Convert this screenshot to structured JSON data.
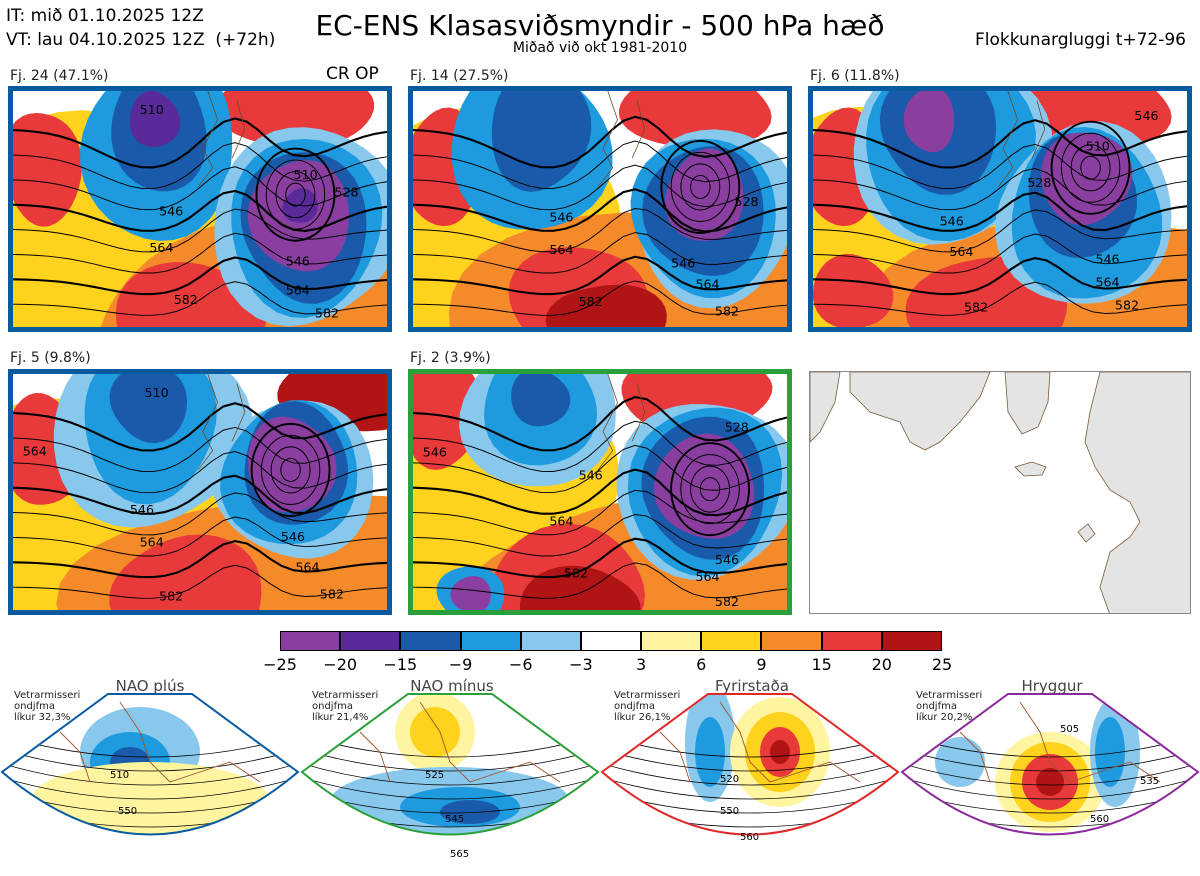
{
  "header": {
    "init_time": "IT: mið 01.10.2025 12Z",
    "valid_time": "VT: lau 04.10.2025 12Z  (+72h)",
    "title": "EC-ENS Klasasviðsmyndir - 500 hPa hæð",
    "subtitle": "Miðað við okt 1981-2010",
    "window": "Flokkunargluggi t+72-96"
  },
  "panels": [
    {
      "label": "Fj. 24 (47.1%)",
      "border_color": "#0a5aa0",
      "marker": "CR OP",
      "contours": [
        "510",
        "528",
        "546",
        "564",
        "582",
        "546",
        "564",
        "582",
        "546"
      ]
    },
    {
      "label": "Fj. 14 (27.5%)",
      "border_color": "#0a5aa0",
      "contours": [
        "528",
        "546",
        "564",
        "582",
        "546",
        "564",
        "582"
      ]
    },
    {
      "label": "Fj. 6 (11.8%)",
      "border_color": "#0a5aa0",
      "contours": [
        "510",
        "528",
        "546",
        "564",
        "582",
        "546",
        "564",
        "582",
        "546"
      ]
    },
    {
      "label": "Fj. 5 (9.8%)",
      "border_color": "#0a5aa0",
      "contours": [
        "510",
        "546",
        "564",
        "582",
        "546",
        "564",
        "582",
        "564"
      ]
    },
    {
      "label": "Fj. 2 (3.9%)",
      "border_color": "#2aa03a",
      "contours": [
        "528",
        "546",
        "564",
        "582",
        "546",
        "564",
        "582",
        "546"
      ]
    }
  ],
  "colorbar": {
    "ticks": [
      "−25",
      "−20",
      "−15",
      "−9",
      "−6",
      "−3",
      "3",
      "6",
      "9",
      "15",
      "20",
      "25"
    ],
    "colors": [
      "#8a3fa0",
      "#5a2a9a",
      "#1a5aaa",
      "#1e9ade",
      "#88c8ec",
      "#ffffff",
      "#fff5a0",
      "#ffd21e",
      "#f58a2a",
      "#e83a3a",
      "#b01414"
    ]
  },
  "regimes": [
    {
      "name": "NAO plús",
      "line1": "Vetrarmisseri",
      "line2": "ondjfma",
      "line3": "líkur 32,3%",
      "color": "#0a5aa0",
      "dot_color": "#0a5aa0",
      "contours": [
        "510",
        "550"
      ]
    },
    {
      "name": "NAO mínus",
      "line1": "Vetrarmisseri",
      "line2": "ondjfma",
      "line3": "líkur 21,4%",
      "color": "#2aa03a",
      "dot_color": "#2ab04a",
      "contours": [
        "525",
        "545",
        "565"
      ]
    },
    {
      "name": "Fyrirstaða",
      "line1": "Vetrarmisseri",
      "line2": "ondjfma",
      "line3": "líkur 26,1%",
      "color": "#e02828",
      "dot_color": "#e82020",
      "contours": [
        "520",
        "550",
        "560"
      ]
    },
    {
      "name": "Hryggur",
      "line1": "Vetrarmisseri",
      "line2": "ondjfma",
      "line3": "líkur 20,2%",
      "color": "#8a2a9a",
      "dot_color": "#ee66ee",
      "contours": [
        "505",
        "535",
        "560"
      ]
    }
  ]
}
